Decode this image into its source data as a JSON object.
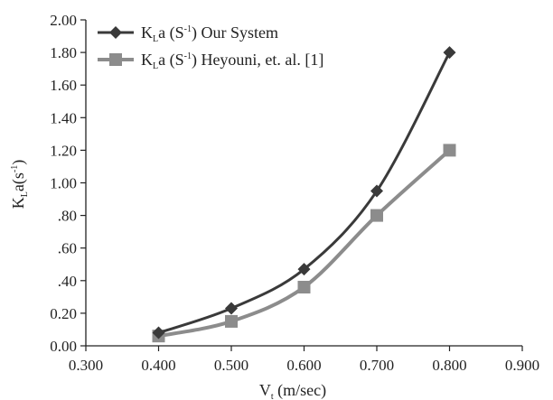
{
  "chart_data": {
    "type": "line",
    "xlabel": "V",
    "xlabel_sub": "t",
    "xlabel_unit": " (m/sec)",
    "ylabel": "K",
    "ylabel_sub": "L",
    "ylabel_rest": "a(s",
    "ylabel_sup": "-1",
    "ylabel_close": ")",
    "xlim": [
      0.3,
      0.9
    ],
    "ylim": [
      0.0,
      2.0
    ],
    "xticks": [
      0.3,
      0.4,
      0.5,
      0.6,
      0.7,
      0.8,
      0.9
    ],
    "xtick_labels": [
      "0.300",
      "0.400",
      "0.500",
      "0.600",
      "0.700",
      "0.800",
      "0.900"
    ],
    "yticks": [
      0.0,
      0.2,
      0.4,
      0.6,
      0.8,
      1.0,
      1.2,
      1.4,
      1.6,
      1.8,
      2.0
    ],
    "ytick_labels": [
      "0.00",
      "0.20",
      ".40",
      ".60",
      ".80",
      "1.00",
      "1.20",
      "1.40",
      "1.60",
      "1.80",
      "2.00"
    ],
    "grid": false,
    "legend_position": "top-left",
    "series": [
      {
        "name_prefix": "K",
        "name_sub": "L",
        "name_mid": "a (S",
        "name_sup": "-1",
        "name_suffix": ") Our System",
        "marker": "diamond",
        "color": "#3a3a3a",
        "x": [
          0.4,
          0.5,
          0.6,
          0.7,
          0.8
        ],
        "y": [
          0.08,
          0.23,
          0.47,
          0.95,
          1.8
        ]
      },
      {
        "name_prefix": "K",
        "name_sub": "L",
        "name_mid": "a (S",
        "name_sup": "-1",
        "name_suffix": ") Heyouni, et. al. [1]",
        "marker": "square",
        "color": "#8c8c8c",
        "x": [
          0.4,
          0.5,
          0.6,
          0.7,
          0.8
        ],
        "y": [
          0.06,
          0.15,
          0.36,
          0.8,
          1.2
        ]
      }
    ]
  }
}
